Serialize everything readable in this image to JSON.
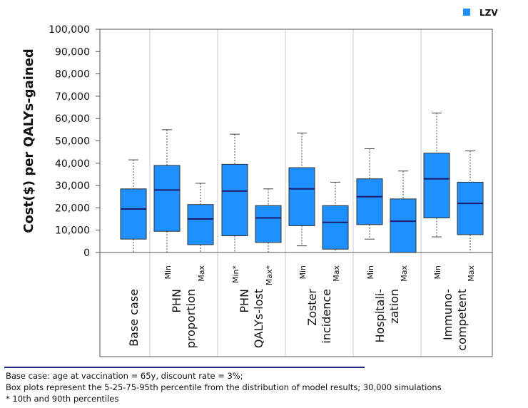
{
  "chart_data": {
    "type": "boxplot",
    "title": "",
    "ylabel": "Cost($) per QALYs-gained",
    "ylim": [
      0,
      100000
    ],
    "yticks": [
      "100,000",
      "90,000",
      "80,000",
      "70,000",
      "60,000",
      "50,000",
      "40,000",
      "30,000",
      "20,000",
      "10,000",
      "0"
    ],
    "ytick_values": [
      100000,
      90000,
      80000,
      70000,
      60000,
      50000,
      40000,
      30000,
      20000,
      10000,
      0
    ],
    "legend": {
      "label": "LZV",
      "color": "#1e90ff",
      "position": "top-right"
    },
    "groups": [
      {
        "label": "Base case"
      },
      {
        "label": "PHN proportion"
      },
      {
        "label": "PHN QALYs-lost"
      },
      {
        "label": "Zoster incidence"
      },
      {
        "label": "Hospitalization"
      },
      {
        "label": "Immunocompetent"
      }
    ],
    "boxes": [
      {
        "group": "Base case",
        "variant": "",
        "p5": 0,
        "q1": 6000,
        "median": 19500,
        "q3": 28500,
        "p95": 41500
      },
      {
        "group": "PHN proportion",
        "variant": "Min",
        "p5": 0,
        "q1": 9500,
        "median": 28000,
        "q3": 39000,
        "p95": 55000
      },
      {
        "group": "PHN proportion",
        "variant": "Max",
        "p5": 0,
        "q1": 3500,
        "median": 15000,
        "q3": 21500,
        "p95": 31000
      },
      {
        "group": "PHN QALYs-lost",
        "variant": "Min*",
        "p5": 0,
        "q1": 7500,
        "median": 27500,
        "q3": 39500,
        "p95": 53000
      },
      {
        "group": "PHN QALYs-lost",
        "variant": "Max*",
        "p5": 0,
        "q1": 4500,
        "median": 15500,
        "q3": 21000,
        "p95": 28500
      },
      {
        "group": "Zoster incidence",
        "variant": "Min",
        "p5": 3000,
        "q1": 12000,
        "median": 28500,
        "q3": 38000,
        "p95": 53500
      },
      {
        "group": "Zoster incidence",
        "variant": "Max",
        "p5": 0,
        "q1": 1500,
        "median": 13500,
        "q3": 21000,
        "p95": 31500
      },
      {
        "group": "Hospitalization",
        "variant": "Min",
        "p5": 6000,
        "q1": 12500,
        "median": 25000,
        "q3": 33000,
        "p95": 46500
      },
      {
        "group": "Hospitalization",
        "variant": "Max",
        "p5": 0,
        "q1": 0,
        "median": 14000,
        "q3": 24000,
        "p95": 36500
      },
      {
        "group": "Immunocompetent",
        "variant": "Min",
        "p5": 7000,
        "q1": 15500,
        "median": 33000,
        "q3": 44500,
        "p95": 62500
      },
      {
        "group": "Immunocompetent",
        "variant": "Max",
        "p5": 0,
        "q1": 8000,
        "median": 22000,
        "q3": 31500,
        "p95": 45500
      }
    ],
    "category_labels": [
      {
        "lines": [
          "Base case"
        ]
      },
      {
        "lines": [
          "PHN",
          "proportion"
        ]
      },
      {
        "lines": [
          "PHN",
          "QALYs-lost"
        ]
      },
      {
        "lines": [
          "Zoster",
          "incidence"
        ]
      },
      {
        "lines": [
          "Hospitali-",
          "zation"
        ]
      },
      {
        "lines": [
          "Immuno-",
          "competent"
        ]
      }
    ]
  },
  "footnotes": {
    "line1": "Base case: age at vaccination = 65y, discount rate = 3%;",
    "line2": "Box plots represent the 5-25-75-95th  percentile from the distribution of model results; 30,000 simulations",
    "line3": "* 10th and 90th percentiles"
  }
}
